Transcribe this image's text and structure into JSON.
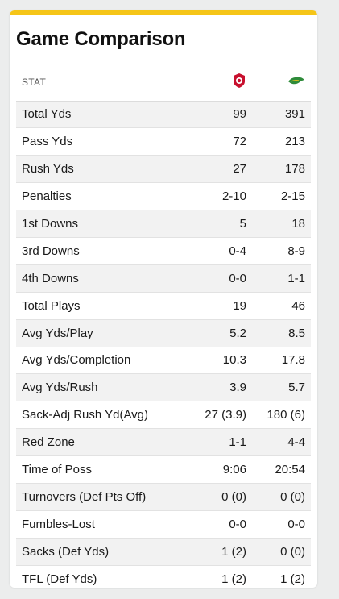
{
  "title": "Game Comparison",
  "header": {
    "stat_label": "STAT",
    "team1_logo_color": "#c8102e",
    "team2_logo_color": "#2e8b3a"
  },
  "rows": [
    {
      "stat": "Total Yds",
      "team1": "99",
      "team2": "391"
    },
    {
      "stat": "Pass Yds",
      "team1": "72",
      "team2": "213"
    },
    {
      "stat": "Rush Yds",
      "team1": "27",
      "team2": "178"
    },
    {
      "stat": "Penalties",
      "team1": "2-10",
      "team2": "2-15"
    },
    {
      "stat": "1st Downs",
      "team1": "5",
      "team2": "18"
    },
    {
      "stat": "3rd Downs",
      "team1": "0-4",
      "team2": "8-9"
    },
    {
      "stat": "4th Downs",
      "team1": "0-0",
      "team2": "1-1"
    },
    {
      "stat": "Total Plays",
      "team1": "19",
      "team2": "46"
    },
    {
      "stat": "Avg Yds/Play",
      "team1": "5.2",
      "team2": "8.5"
    },
    {
      "stat": "Avg Yds/Completion",
      "team1": "10.3",
      "team2": "17.8"
    },
    {
      "stat": "Avg Yds/Rush",
      "team1": "3.9",
      "team2": "5.7"
    },
    {
      "stat": "Sack-Adj Rush Yd(Avg)",
      "team1": "27 (3.9)",
      "team2": "180 (6)"
    },
    {
      "stat": "Red Zone",
      "team1": "1-1",
      "team2": "4-4"
    },
    {
      "stat": "Time of Poss",
      "team1": "9:06",
      "team2": "20:54"
    },
    {
      "stat": "Turnovers (Def Pts Off)",
      "team1": "0 (0)",
      "team2": "0 (0)"
    },
    {
      "stat": "Fumbles-Lost",
      "team1": "0-0",
      "team2": "0-0"
    },
    {
      "stat": "Sacks (Def Yds)",
      "team1": "1 (2)",
      "team2": "0 (0)"
    },
    {
      "stat": "TFL (Def Yds)",
      "team1": "1 (2)",
      "team2": "1 (2)"
    }
  ],
  "colors": {
    "accent": "#f5c518",
    "stripe": "#f2f2f2"
  }
}
